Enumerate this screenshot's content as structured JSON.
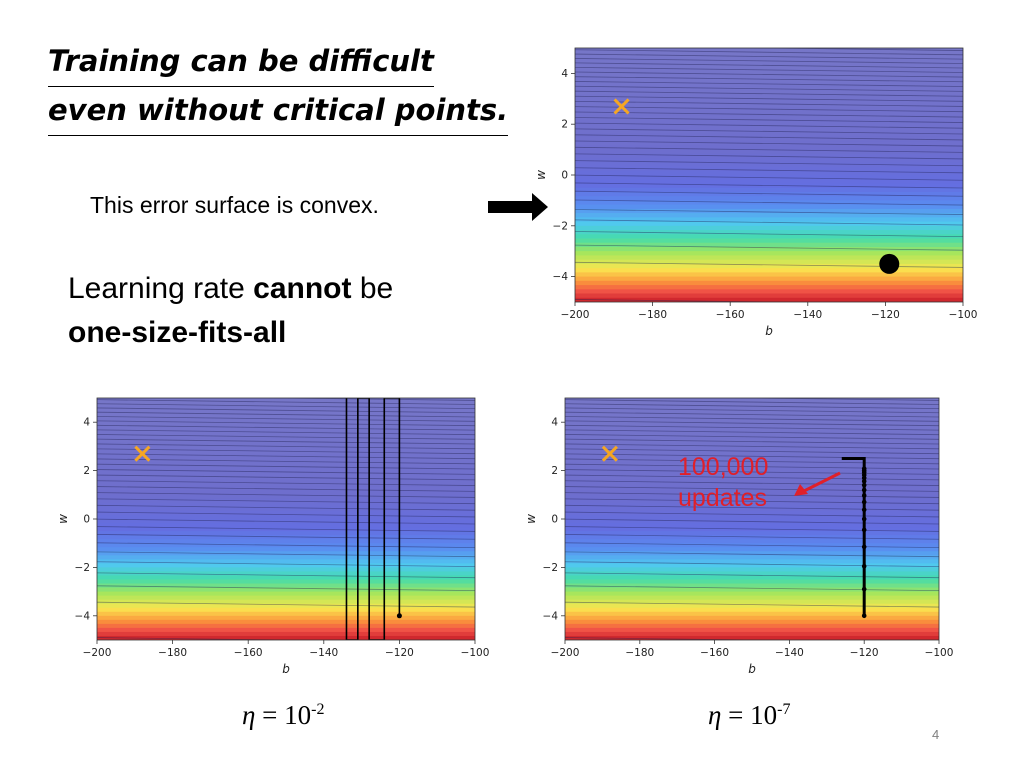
{
  "title_line1": "Training can be difficult",
  "title_line2": "even without critical points.",
  "convex_note": "This error surface is convex.",
  "lr_text": {
    "part1": "Learning rate ",
    "emphasis": "cannot",
    "part2": " be",
    "line2": "one-size-fits-all"
  },
  "eta_small": {
    "symbol": "η",
    "base": " = 10",
    "exp": "-2"
  },
  "eta_tiny": {
    "symbol": "η",
    "base": " = 10",
    "exp": "-7"
  },
  "annotation": {
    "line1": "100,000",
    "line2": "updates",
    "color": "#e0202a"
  },
  "page_number": "4",
  "chart_data": [
    {
      "type": "contour",
      "xlabel": "b",
      "ylabel": "w",
      "xlim": [
        -200,
        -100
      ],
      "ylim": [
        -5,
        5
      ],
      "xticks": [
        -200,
        -180,
        -160,
        -140,
        -120,
        -100
      ],
      "yticks": [
        -4,
        -2,
        0,
        2,
        4
      ],
      "target_marker": {
        "b": -188,
        "w": 2.7,
        "symbol": "x",
        "color": "#f5a623"
      },
      "start_point": {
        "b": -119,
        "w": -3.5,
        "color": "#000000"
      }
    },
    {
      "type": "contour",
      "xlabel": "b",
      "ylabel": "w",
      "xlim": [
        -200,
        -100
      ],
      "ylim": [
        -5,
        5
      ],
      "xticks": [
        -200,
        -180,
        -160,
        -140,
        -120,
        -100
      ],
      "yticks": [
        -4,
        -2,
        0,
        2,
        4
      ],
      "target_marker": {
        "b": -188,
        "w": 2.7,
        "symbol": "x",
        "color": "#f5a623"
      },
      "path_b": [
        -120,
        -120,
        -124,
        -124,
        -128,
        -128,
        -131,
        -131,
        -134,
        -134
      ],
      "path_w": [
        -4,
        5,
        5,
        -5,
        -5,
        5,
        5,
        -5,
        -5,
        5
      ]
    },
    {
      "type": "contour",
      "xlabel": "b",
      "ylabel": "w",
      "xlim": [
        -200,
        -100
      ],
      "ylim": [
        -5,
        5
      ],
      "xticks": [
        -200,
        -180,
        -160,
        -140,
        -120,
        -100
      ],
      "yticks": [
        -4,
        -2,
        0,
        2,
        4
      ],
      "target_marker": {
        "b": -188,
        "w": 2.7,
        "symbol": "x",
        "color": "#f5a623"
      },
      "path_b": [
        -120,
        -120,
        -120,
        -120,
        -120,
        -120,
        -120,
        -120,
        -120,
        -120,
        -120,
        -120,
        -120,
        -120,
        -120,
        -120,
        -120,
        -120,
        -121,
        -122,
        -123,
        -124,
        -125,
        -126
      ],
      "path_w": [
        -4,
        -2.9,
        -1.95,
        -1.15,
        -0.45,
        0,
        0.38,
        0.7,
        0.97,
        1.2,
        1.4,
        1.56,
        1.7,
        1.82,
        1.92,
        2.0,
        2.08,
        2.5,
        2.5,
        2.5,
        2.5,
        2.5,
        2.5,
        2.5
      ]
    }
  ]
}
